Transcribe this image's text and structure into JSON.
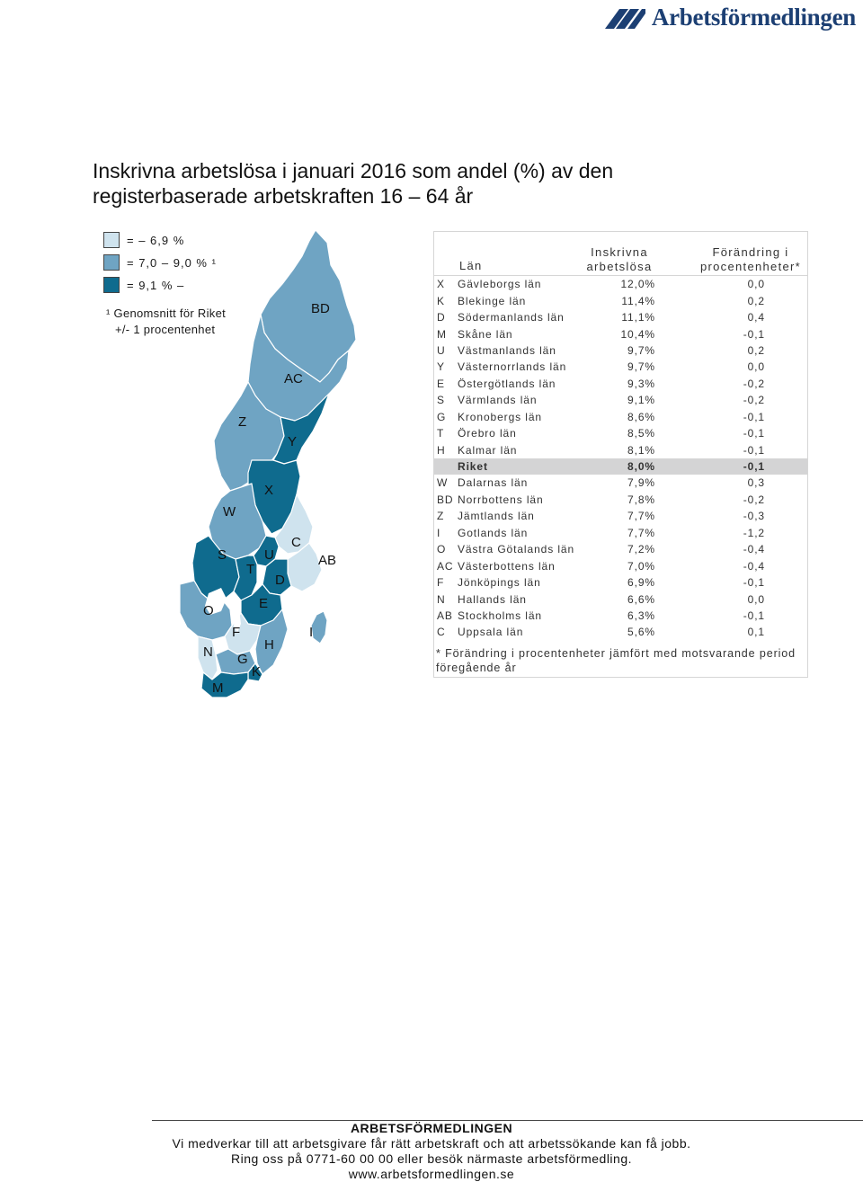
{
  "colors": {
    "low": "#cfe3ee",
    "mid": "#6fa4c3",
    "high": "#0f6b8e",
    "border": "#ffffff",
    "brand": "#1c3f73"
  },
  "header": {
    "logo_text": "Arbetsförmedlingen",
    "logo_icon": "arbetsformedlingen-logo-icon"
  },
  "title": {
    "line1": "Inskrivna arbetslösa i januari 2016 som andel (%) av den",
    "line2": "registerbaserade arbetskraften 16 – 64 år"
  },
  "legend": {
    "items": [
      {
        "label": "= – 6,9 %",
        "level": "low"
      },
      {
        "label": "= 7,0 – 9,0 % ¹",
        "level": "mid"
      },
      {
        "label": "= 9,1 % –",
        "level": "high"
      }
    ],
    "note_line1": "¹ Genomsnitt för Riket",
    "note_line2": "+/- 1 procentenhet"
  },
  "map_labels": [
    "BD",
    "AC",
    "Z",
    "Y",
    "X",
    "W",
    "C",
    "S",
    "U",
    "AB",
    "T",
    "D",
    "O",
    "E",
    "F",
    "H",
    "I",
    "N",
    "G",
    "K",
    "M"
  ],
  "table": {
    "header": {
      "col_code": "",
      "col_lan": "Län",
      "col_value_1": "Inskrivna",
      "col_value_2": "arbetslösa",
      "col_change_1": "Förändring i",
      "col_change_2": "procentenheter*"
    },
    "rows": [
      {
        "code": "X",
        "name": "Gävleborgs län",
        "value": "12,0%",
        "change": "0,0"
      },
      {
        "code": "K",
        "name": "Blekinge län",
        "value": "11,4%",
        "change": "0,2"
      },
      {
        "code": "D",
        "name": "Södermanlands län",
        "value": "11,1%",
        "change": "0,4"
      },
      {
        "code": "M",
        "name": "Skåne län",
        "value": "10,4%",
        "change": "-0,1"
      },
      {
        "code": "U",
        "name": "Västmanlands län",
        "value": "9,7%",
        "change": "0,2"
      },
      {
        "code": "Y",
        "name": "Västernorrlands län",
        "value": "9,7%",
        "change": "0,0"
      },
      {
        "code": "E",
        "name": "Östergötlands län",
        "value": "9,3%",
        "change": "-0,2"
      },
      {
        "code": "S",
        "name": "Värmlands län",
        "value": "9,1%",
        "change": "-0,2"
      },
      {
        "code": "G",
        "name": "Kronobergs län",
        "value": "8,6%",
        "change": "-0,1"
      },
      {
        "code": "T",
        "name": "Örebro län",
        "value": "8,5%",
        "change": "-0,1"
      },
      {
        "code": "H",
        "name": "Kalmar län",
        "value": "8,1%",
        "change": "-0,1"
      },
      {
        "code": "",
        "name": "Riket",
        "value": "8,0%",
        "change": "-0,1",
        "highlight": true
      },
      {
        "code": "W",
        "name": "Dalarnas län",
        "value": "7,9%",
        "change": "0,3"
      },
      {
        "code": "BD",
        "name": "Norrbottens län",
        "value": "7,8%",
        "change": "-0,2"
      },
      {
        "code": "Z",
        "name": "Jämtlands län",
        "value": "7,7%",
        "change": "-0,3"
      },
      {
        "code": "I",
        "name": "Gotlands län",
        "value": "7,7%",
        "change": "-1,2"
      },
      {
        "code": "O",
        "name": "Västra Götalands län",
        "value": "7,2%",
        "change": "-0,4"
      },
      {
        "code": "AC",
        "name": "Västerbottens län",
        "value": "7,0%",
        "change": "-0,4"
      },
      {
        "code": "F",
        "name": "Jönköpings län",
        "value": "6,9%",
        "change": "-0,1"
      },
      {
        "code": "N",
        "name": "Hallands län",
        "value": "6,6%",
        "change": "0,0"
      },
      {
        "code": "AB",
        "name": "Stockholms län",
        "value": "6,3%",
        "change": "-0,1"
      },
      {
        "code": "C",
        "name": "Uppsala län",
        "value": "5,6%",
        "change": "0,1"
      }
    ],
    "footnote": "* Förändring i procentenheter jämfört med motsvarande period föregående år"
  },
  "footer": {
    "org": "ARBETSFÖRMEDLINGEN",
    "line1": "Vi medverkar till att arbetsgivare får rätt arbetskraft och att arbetssökande kan få jobb.",
    "line2": "Ring oss på 0771-60 00 00 eller besök närmaste arbetsförmedling.",
    "url": "www.arbetsformedlingen.se"
  }
}
